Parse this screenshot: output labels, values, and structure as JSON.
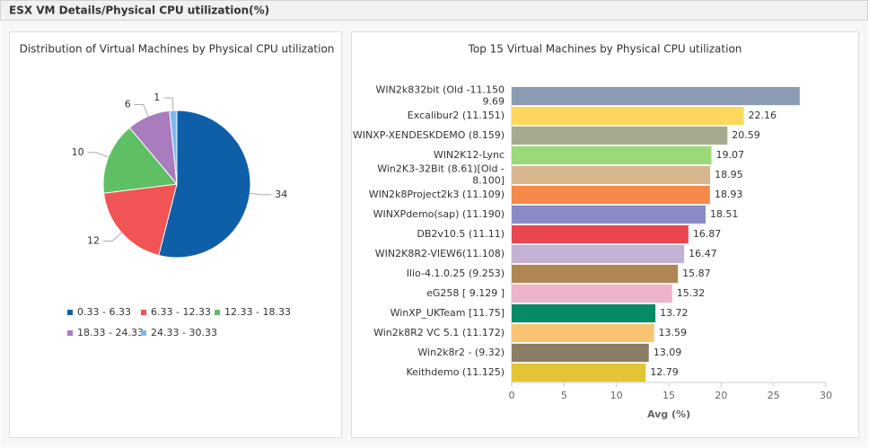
{
  "header": {
    "title": "ESX VM Details/Physical CPU utilization(%)"
  },
  "chart_data": [
    {
      "type": "pie",
      "title": "Distribution of Virtual Machines by Physical CPU utilization",
      "categories": [
        "0.33 - 6.33",
        "6.33 - 12.33",
        "12.33 - 18.33",
        "18.33 - 24.33",
        "24.33 - 30.33"
      ],
      "values": [
        34,
        12,
        10,
        6,
        1
      ],
      "colors": [
        "#0f5fa8",
        "#f05454",
        "#5fbf65",
        "#a97bbf",
        "#7fb8f0"
      ]
    },
    {
      "type": "hbar",
      "title": "Top 15 Virtual Machines by Physical CPU utilization",
      "categories": [
        [
          "WIN2k832bit (Old -11.150",
          "9.69"
        ],
        [
          "Excalibur2 (11.151)"
        ],
        [
          "WINXP-XENDESKDEMO (8.159)"
        ],
        [
          "WIN2K12-Lync"
        ],
        [
          "Win2K3-32Bit (8.61)[Old -",
          "8.100]"
        ],
        [
          "WIN2k8Project2k3 (11.109)"
        ],
        [
          "WINXPdemo(sap) (11.190)"
        ],
        [
          "DB2v10.5 (11.11)"
        ],
        [
          "WIN2K8R2-VIEW6(11.108)"
        ],
        [
          "Ilio-4.1.0.25 (9.253)"
        ],
        [
          "eG258 [ 9.129 ]"
        ],
        [
          "WinXP_UKTeam [11.75]"
        ],
        [
          "Win2k8R2 VC 5.1 (11.172)"
        ],
        [
          "Win2k8r2 - (9.32)"
        ],
        [
          "Keithdemo (11.125)"
        ]
      ],
      "values": [
        27.5,
        22.16,
        20.59,
        19.07,
        18.95,
        18.93,
        18.51,
        16.87,
        16.47,
        15.87,
        15.32,
        13.72,
        13.59,
        13.09,
        12.79
      ],
      "value_labels": [
        null,
        "22.16",
        "20.59",
        "19.07",
        "18.95",
        "18.93",
        "18.51",
        "16.87",
        "16.47",
        "15.87",
        "15.32",
        "13.72",
        "13.59",
        "13.09",
        "12.79"
      ],
      "colors": [
        "#8a9bb3",
        "#fdd85d",
        "#a6ab8f",
        "#99d97a",
        "#d8b78f",
        "#f4894a",
        "#8c8bc8",
        "#e8474f",
        "#c4b2d4",
        "#b08752",
        "#ecb3cb",
        "#078a68",
        "#f8c471",
        "#8b7d65",
        "#e2c434"
      ],
      "xlim": [
        0,
        30
      ],
      "xticks": [
        0,
        5,
        10,
        15,
        20,
        25,
        30
      ],
      "xlabel": "Avg (%)"
    }
  ]
}
